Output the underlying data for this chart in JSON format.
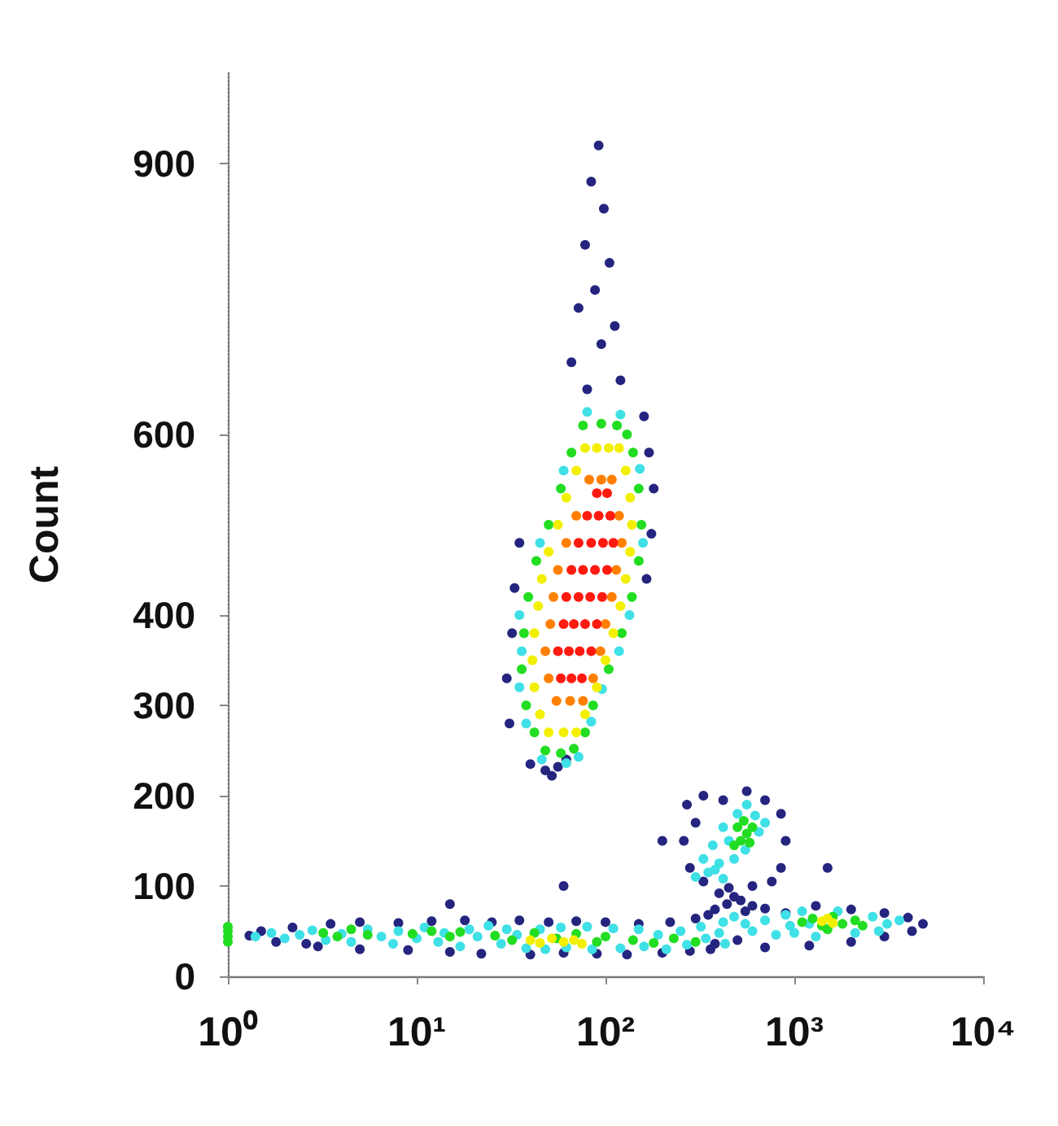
{
  "chart_data": {
    "type": "scatter",
    "ylabel": "Count",
    "log": "x",
    "marker": "circle",
    "xlim": [
      1,
      10000
    ],
    "xticks": [
      {
        "value": 1,
        "label": "10⁰"
      },
      {
        "value": 10,
        "label": "10¹"
      },
      {
        "value": 100,
        "label": "10²"
      },
      {
        "value": 1000,
        "label": "10³"
      },
      {
        "value": 10000,
        "label": "10⁴"
      }
    ],
    "ylim": [
      0,
      1000
    ],
    "yticks": [
      0,
      100,
      200,
      300,
      400,
      600,
      900
    ],
    "series": [
      {
        "color": "#25257f",
        "x": [
          92,
          84,
          98,
          78,
          105,
          88,
          72,
          112,
          95,
          66,
          120,
          80,
          31,
          30,
          32,
          33,
          35,
          165,
          175,
          180,
          170,
          160,
          40,
          48,
          56,
          62,
          52,
          270,
          330,
          420,
          560,
          700,
          850,
          900,
          850,
          760,
          600,
          450,
          330,
          280,
          260,
          300,
          400,
          480,
          520,
          440,
          600,
          380,
          550,
          700,
          350,
          900,
          1.3,
          1.5,
          1.8,
          2.2,
          2.6,
          3.5,
          5,
          8,
          12,
          18,
          25,
          35,
          50,
          70,
          100,
          150,
          220,
          300,
          3,
          5,
          9,
          15,
          22,
          40,
          60,
          90,
          130,
          200,
          280,
          360,
          1300,
          2000,
          3000,
          4000,
          4800,
          4200,
          3000,
          2000,
          1200,
          700,
          500,
          380,
          60,
          1500,
          15,
          200
        ],
        "values": [
          920,
          880,
          850,
          810,
          790,
          760,
          740,
          720,
          700,
          680,
          660,
          650,
          280,
          330,
          380,
          430,
          480,
          440,
          490,
          540,
          580,
          620,
          235,
          228,
          232,
          240,
          222,
          190,
          200,
          195,
          205,
          195,
          180,
          150,
          120,
          105,
          100,
          98,
          105,
          120,
          150,
          170,
          92,
          88,
          84,
          80,
          78,
          74,
          72,
          75,
          68,
          70,
          45,
          50,
          38,
          54,
          36,
          58,
          60,
          59,
          61,
          62,
          60,
          62,
          60,
          61,
          60,
          58,
          60,
          64,
          33,
          30,
          29,
          27,
          25,
          24,
          26,
          25,
          24,
          26,
          28,
          30,
          78,
          74,
          70,
          65,
          58,
          50,
          44,
          38,
          34,
          32,
          40,
          36,
          100,
          120,
          80,
          150
        ]
      },
      {
        "color": "#3fe0e6",
        "x": [
          46,
          62,
          72,
          38,
          84,
          35,
          96,
          35,
          134,
          45,
          158,
          60,
          152,
          80,
          120,
          36,
          118,
          300,
          350,
          420,
          330,
          400,
          480,
          370,
          450,
          550,
          420,
          500,
          620,
          700,
          560,
          650,
          380,
          1.4,
          1.7,
          2,
          2.4,
          2.8,
          3.3,
          4,
          4.5,
          5.5,
          6.5,
          7.5,
          8,
          10,
          11,
          13,
          14,
          17,
          19,
          21,
          24,
          28,
          30,
          34,
          38,
          45,
          48,
          58,
          62,
          80,
          85,
          110,
          120,
          150,
          160,
          190,
          210,
          250,
          270,
          320,
          340,
          400,
          430,
          420,
          480,
          550,
          600,
          700,
          800,
          900,
          1000,
          1100,
          1300,
          1700,
          2100,
          2600,
          3100,
          3600,
          2800,
          1200,
          950
        ],
        "values": [
          240,
          236,
          243,
          280,
          282,
          320,
          318,
          400,
          400,
          480,
          480,
          560,
          562,
          625,
          622,
          360,
          360,
          110,
          115,
          108,
          130,
          125,
          130,
          145,
          150,
          140,
          165,
          180,
          178,
          170,
          190,
          160,
          118,
          44,
          48,
          42,
          46,
          51,
          40,
          47,
          38,
          52,
          44,
          36,
          50,
          42,
          54,
          38,
          48,
          33,
          52,
          44,
          56,
          36,
          52,
          46,
          31,
          52,
          30,
          54,
          32,
          55,
          30,
          53,
          31,
          52,
          33,
          46,
          30,
          50,
          35,
          55,
          42,
          48,
          36,
          60,
          66,
          58,
          50,
          62,
          46,
          68,
          48,
          72,
          44,
          72,
          48,
          66,
          58,
          62,
          50,
          58,
          56
        ]
      },
      {
        "color": "#22dd22",
        "x": [
          48,
          58,
          68,
          42,
          78,
          38,
          86,
          36,
          104,
          37,
          122,
          39,
          138,
          43,
          150,
          50,
          155,
          58,
          150,
          66,
          140,
          76,
          95,
          115,
          130,
          480,
          520,
          560,
          600,
          500,
          540,
          580,
          1,
          1,
          1,
          1,
          3.2,
          3.8,
          4.5,
          5.5,
          9.5,
          12,
          15,
          17,
          26,
          32,
          42,
          55,
          70,
          90,
          100,
          140,
          180,
          230,
          300,
          1100,
          1250,
          1400,
          1600,
          1800,
          2100,
          2300,
          1500
        ],
        "values": [
          250,
          247,
          252,
          270,
          270,
          300,
          300,
          340,
          340,
          380,
          380,
          420,
          420,
          460,
          460,
          500,
          500,
          540,
          540,
          580,
          580,
          610,
          612,
          610,
          600,
          145,
          150,
          158,
          165,
          165,
          172,
          148,
          38,
          44,
          50,
          55,
          48,
          44,
          52,
          46,
          47,
          50,
          44,
          49,
          45,
          40,
          48,
          42,
          47,
          38,
          44,
          40,
          37,
          42,
          38,
          60,
          64,
          56,
          66,
          58,
          62,
          56,
          52
        ]
      },
      {
        "color": "#f2f000",
        "x": [
          50,
          60,
          70,
          45,
          78,
          42,
          90,
          41,
          100,
          42,
          110,
          44,
          120,
          46,
          128,
          50,
          135,
          56,
          138,
          62,
          135,
          70,
          128,
          78,
          90,
          104,
          118,
          40,
          45,
          52,
          60,
          68,
          75,
          1400,
          1500,
          1600
        ],
        "values": [
          270,
          270,
          270,
          290,
          290,
          320,
          320,
          350,
          350,
          380,
          380,
          410,
          410,
          440,
          440,
          470,
          470,
          500,
          500,
          530,
          530,
          560,
          560,
          585,
          585,
          585,
          585,
          40,
          37,
          42,
          38,
          40,
          36,
          61,
          64,
          59
        ]
      },
      {
        "color": "#ff8000",
        "x": [
          55,
          65,
          76,
          50,
          86,
          48,
          94,
          51,
          100,
          53,
          108,
          56,
          114,
          62,
          122,
          70,
          118,
          82,
          95,
          108
        ],
        "values": [
          305,
          305,
          305,
          330,
          330,
          360,
          360,
          390,
          390,
          420,
          420,
          450,
          450,
          480,
          480,
          510,
          510,
          550,
          550,
          550
        ]
      },
      {
        "color": "#ff1a10",
        "x": [
          58,
          66,
          75,
          56,
          64,
          73,
          84,
          60,
          68,
          78,
          90,
          62,
          72,
          83,
          96,
          66,
          76,
          88,
          102,
          72,
          84,
          97,
          110,
          80,
          92,
          106,
          90,
          102
        ],
        "values": [
          330,
          330,
          330,
          360,
          360,
          360,
          360,
          390,
          390,
          390,
          390,
          420,
          420,
          420,
          420,
          450,
          450,
          450,
          450,
          480,
          480,
          480,
          480,
          510,
          510,
          510,
          535,
          535
        ]
      }
    ]
  }
}
